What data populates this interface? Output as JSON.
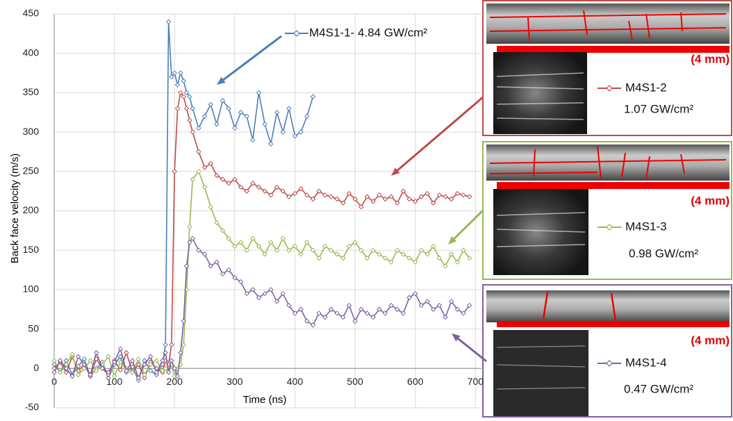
{
  "chart_data": {
    "type": "line",
    "ylabel": "Back face velocity (m/s)",
    "xlabel": "Time (ns)",
    "xlim": [
      0,
      710
    ],
    "xticks": [
      0,
      100,
      200,
      300,
      400,
      500,
      600,
      700
    ],
    "ylim": [
      -50,
      450
    ],
    "yticks": [
      -50,
      0,
      50,
      100,
      150,
      200,
      250,
      300,
      350,
      400,
      450
    ],
    "grid": true,
    "x": [
      0,
      10,
      20,
      30,
      40,
      50,
      60,
      70,
      80,
      90,
      100,
      110,
      120,
      130,
      140,
      150,
      160,
      170,
      180,
      185,
      190,
      195,
      200,
      205,
      210,
      215,
      220,
      225,
      230,
      240,
      250,
      260,
      270,
      280,
      290,
      300,
      310,
      320,
      330,
      340,
      350,
      360,
      370,
      380,
      390,
      400,
      410,
      420,
      430,
      440,
      450,
      460,
      470,
      480,
      490,
      500,
      510,
      520,
      530,
      540,
      550,
      560,
      570,
      580,
      590,
      600,
      610,
      620,
      630,
      640,
      650,
      660,
      670,
      680,
      690
    ],
    "series": [
      {
        "name": "M4S1-1- 4.84 GW/cm²",
        "color": "#4a7ebb",
        "values": [
          5,
          -5,
          10,
          -8,
          3,
          12,
          -10,
          0,
          8,
          -12,
          5,
          15,
          -5,
          2,
          -15,
          10,
          -3,
          -8,
          5,
          30,
          440,
          370,
          375,
          360,
          375,
          365,
          350,
          345,
          330,
          305,
          320,
          335,
          310,
          340,
          330,
          305,
          325,
          320,
          290,
          350,
          310,
          285,
          325,
          300,
          330,
          295,
          300,
          320,
          345,
          null,
          null,
          null,
          null,
          null,
          null,
          null,
          null,
          null,
          null,
          null,
          null,
          null,
          null,
          null,
          null,
          null,
          null,
          null,
          null,
          null,
          null,
          null,
          null,
          null,
          null
        ]
      },
      {
        "name": "M4S1-2",
        "note": "1.07 GW/cm²",
        "scale_label": "(4 mm)",
        "color": "#be4b48",
        "values": [
          0,
          8,
          -5,
          15,
          -3,
          5,
          -10,
          12,
          0,
          -8,
          10,
          -2,
          20,
          -5,
          5,
          -12,
          8,
          0,
          -5,
          10,
          5,
          30,
          250,
          330,
          350,
          345,
          330,
          315,
          300,
          275,
          255,
          260,
          245,
          240,
          235,
          240,
          230,
          225,
          235,
          230,
          225,
          220,
          230,
          225,
          218,
          222,
          228,
          220,
          215,
          225,
          220,
          218,
          215,
          210,
          222,
          215,
          205,
          218,
          212,
          220,
          215,
          218,
          210,
          225,
          215,
          212,
          218,
          222,
          210,
          220,
          218,
          215,
          222,
          220,
          218
        ]
      },
      {
        "name": "M4S1-3",
        "note": "0.98 GW/cm²",
        "scale_label": "(4 mm)",
        "color": "#98b954",
        "values": [
          10,
          -5,
          5,
          18,
          -8,
          0,
          10,
          -3,
          5,
          15,
          -10,
          8,
          0,
          -5,
          12,
          -8,
          5,
          10,
          -3,
          0,
          -5,
          5,
          -10,
          0,
          5,
          30,
          100,
          180,
          240,
          250,
          230,
          205,
          185,
          175,
          165,
          155,
          160,
          150,
          165,
          155,
          145,
          160,
          150,
          165,
          150,
          155,
          145,
          160,
          150,
          140,
          155,
          150,
          145,
          140,
          155,
          160,
          150,
          140,
          150,
          145,
          140,
          135,
          150,
          145,
          140,
          135,
          150,
          145,
          155,
          140,
          130,
          145,
          135,
          150,
          140
        ]
      },
      {
        "name": "M4S1-4",
        "note": "0.47 GW/cm²",
        "scale_label": "(4 mm)",
        "color": "#7d60a0",
        "values": [
          -5,
          10,
          0,
          -10,
          15,
          5,
          -8,
          20,
          0,
          -5,
          8,
          25,
          -3,
          10,
          -12,
          5,
          15,
          -5,
          10,
          20,
          -5,
          10,
          0,
          -10,
          20,
          60,
          130,
          160,
          165,
          150,
          145,
          130,
          135,
          120,
          125,
          115,
          110,
          95,
          100,
          90,
          95,
          100,
          85,
          95,
          80,
          70,
          75,
          60,
          55,
          70,
          65,
          75,
          70,
          65,
          80,
          60,
          75,
          70,
          65,
          75,
          70,
          80,
          75,
          70,
          90,
          95,
          80,
          85,
          75,
          80,
          65,
          85,
          75,
          70,
          80
        ]
      }
    ]
  }
}
